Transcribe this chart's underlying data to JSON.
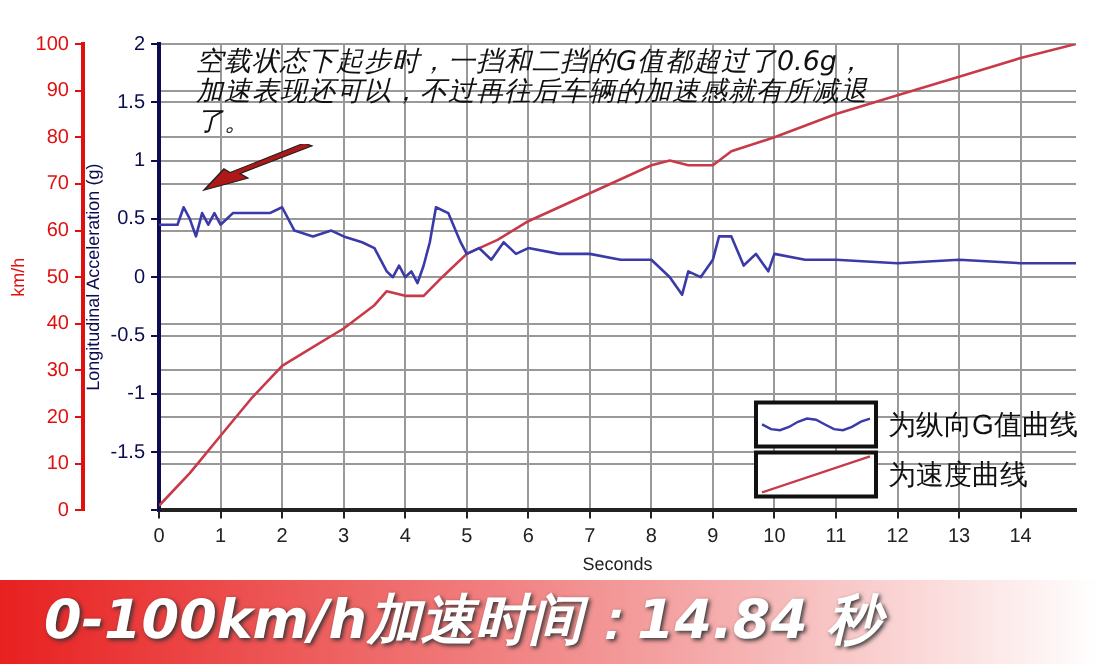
{
  "chart_data": {
    "type": "line",
    "xlabel": "Seconds",
    "ylabel": "Longitudinal Acceleration (g)",
    "y2label": "km/h",
    "xlim": [
      0,
      14.9
    ],
    "xticks": [
      0,
      1,
      2,
      3,
      4,
      5,
      6,
      7,
      8,
      9,
      10,
      11,
      12,
      13,
      14
    ],
    "ylim": [
      -2,
      2
    ],
    "yticks": [
      {
        "value": -2,
        "label": null
      },
      -1.5,
      -1,
      -0.5,
      0,
      0.5,
      1,
      1.5,
      2
    ],
    "y2lim": [
      0,
      100
    ],
    "y2ticks": [
      0,
      10,
      20,
      30,
      40,
      50,
      60,
      70,
      80,
      90,
      100
    ],
    "grid": true,
    "legend": "bottom right",
    "marker": "none",
    "line_style": "solid",
    "annotations": [
      "空载状态下起步时，一挡和二挡的G值都超过了0.6g，加速表现还可以，不过再往后车辆的加速感就有所减退了。",
      "0-100km/h加速时间：14.84 秒"
    ],
    "series": [
      {
        "name": "为纵向G值曲线",
        "color": "#3a3aa8",
        "x": [
          0,
          0.3,
          0.4,
          0.5,
          0.6,
          0.7,
          0.8,
          0.9,
          1,
          1.2,
          1.5,
          1.8,
          2,
          2.2,
          2.5,
          2.8,
          3,
          3.3,
          3.5,
          3.7,
          3.8,
          3.9,
          4,
          4.1,
          4.2,
          4.3,
          4.4,
          4.5,
          4.7,
          4.9,
          5,
          5.2,
          5.4,
          5.6,
          5.8,
          6,
          6.5,
          7,
          7.5,
          8,
          8.3,
          8.5,
          8.6,
          8.8,
          9,
          9.1,
          9.3,
          9.5,
          9.7,
          9.9,
          10,
          10.5,
          11,
          12,
          13,
          14,
          14.9
        ],
        "values": [
          0.45,
          0.45,
          0.6,
          0.5,
          0.35,
          0.55,
          0.45,
          0.55,
          0.45,
          0.55,
          0.55,
          0.55,
          0.6,
          0.4,
          0.35,
          0.4,
          0.35,
          0.3,
          0.25,
          0.05,
          0,
          0.1,
          0,
          0.05,
          -0.05,
          0.1,
          0.3,
          0.6,
          0.55,
          0.3,
          0.2,
          0.25,
          0.15,
          0.3,
          0.2,
          0.25,
          0.2,
          0.2,
          0.15,
          0.15,
          0,
          -0.15,
          0.05,
          0,
          0.15,
          0.35,
          0.35,
          0.1,
          0.2,
          0.05,
          0.2,
          0.15,
          0.15,
          0.12,
          0.15,
          0.12,
          0.12
        ]
      },
      {
        "name": "为速度曲线",
        "color": "#c83a4a",
        "axis": "y2",
        "x": [
          0,
          0.5,
          1,
          1.5,
          2,
          2.5,
          3,
          3.5,
          3.7,
          4,
          4.3,
          4.6,
          5,
          5.5,
          6,
          6.5,
          7,
          7.5,
          8,
          8.3,
          8.6,
          9,
          9.3,
          10,
          11,
          12,
          13,
          14,
          14.9
        ],
        "values": [
          1,
          8,
          16,
          24,
          31,
          35,
          39,
          44,
          47,
          46,
          46,
          50,
          55,
          58,
          62,
          65,
          68,
          71,
          74,
          75,
          74,
          74,
          77,
          80,
          85,
          89,
          93,
          97,
          100
        ]
      }
    ]
  }
}
